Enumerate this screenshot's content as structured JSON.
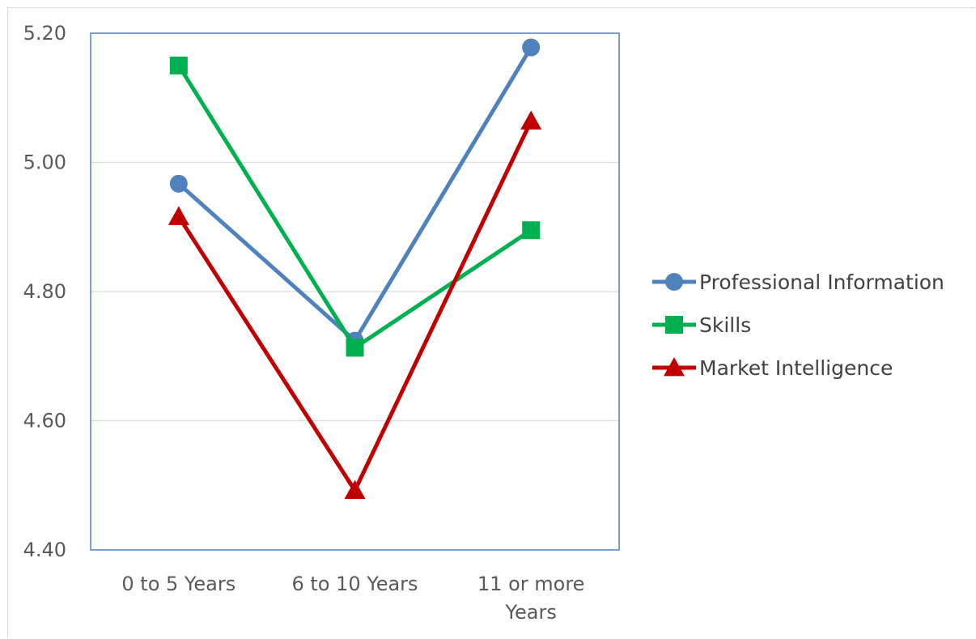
{
  "chart_data": {
    "type": "line",
    "title": "",
    "xlabel": "",
    "ylabel": "",
    "categories": [
      [
        "0 to 5 Years"
      ],
      [
        "6 to 10 Years"
      ],
      [
        "11 or more",
        "Years"
      ]
    ],
    "ylim": [
      4.4,
      5.2
    ],
    "yticks": [
      "4.40",
      "4.60",
      "4.80",
      "5.00",
      "5.20"
    ],
    "grid": true,
    "legend_position": "right",
    "series": [
      {
        "name": "Professional Information",
        "values": [
          4.967,
          4.724,
          5.178
        ],
        "color": "#4f81bd",
        "marker": "circle"
      },
      {
        "name": "Skills",
        "values": [
          5.15,
          4.713,
          4.895
        ],
        "color": "#00b050",
        "marker": "square"
      },
      {
        "name": "Market Intelligence",
        "values": [
          4.916,
          4.492,
          5.064
        ],
        "color": "#c00000",
        "marker": "triangle"
      }
    ]
  }
}
